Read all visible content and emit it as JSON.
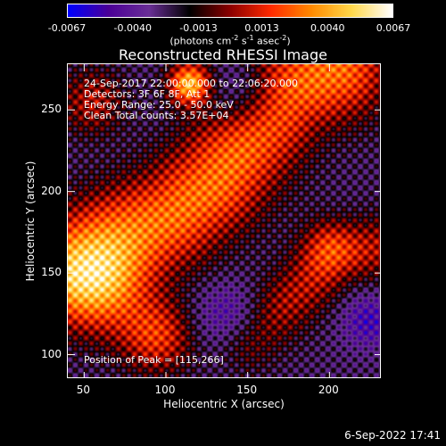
{
  "colorbar": {
    "ticks": [
      "-0.0067",
      "-0.0040",
      "-0.0013",
      "0.0013",
      "0.0040",
      "0.0067"
    ],
    "tick_values": [
      -0.0067,
      -0.004,
      -0.0013,
      0.0013,
      0.004,
      0.0067
    ],
    "unit_label": "(photons cm",
    "unit_exp1": "-2",
    "unit_s": " s",
    "unit_exp2": "-1",
    "unit_asec": " asec",
    "unit_exp3": "-2",
    "unit_close": ")",
    "colors": [
      "#0000ff",
      "#4b0096",
      "#6a2f96",
      "#000000",
      "#8b0000",
      "#ff2a00",
      "#ff8a00",
      "#ffd84a",
      "#ffffff"
    ]
  },
  "chart_data": {
    "type": "heatmap",
    "title": "Reconstructed RHESSI Image",
    "xlabel": "Heliocentric X (arcsec)",
    "ylabel": "Heliocentric Y (arcsec)",
    "xlim": [
      40,
      232
    ],
    "ylim": [
      85,
      278
    ],
    "x_ticks": [
      50,
      100,
      150,
      200
    ],
    "y_ticks": [
      100,
      150,
      200,
      250
    ],
    "value_range": [
      -0.0067,
      0.0067
    ],
    "peak_position": [
      115,
      266
    ],
    "annotations": [
      "24-Sep-2017 22:00:00.000 to 22:06:20.000",
      "Detectors: 3F 6F 8F, Att 1",
      "Energy Range: 25.0 - 50.0 keV",
      "Clean    Total counts: 3.57E+04"
    ],
    "peak_label": "Position of Peak = [115,266]"
  },
  "footer": {
    "timestamp": "6-Sep-2022 17:41"
  }
}
